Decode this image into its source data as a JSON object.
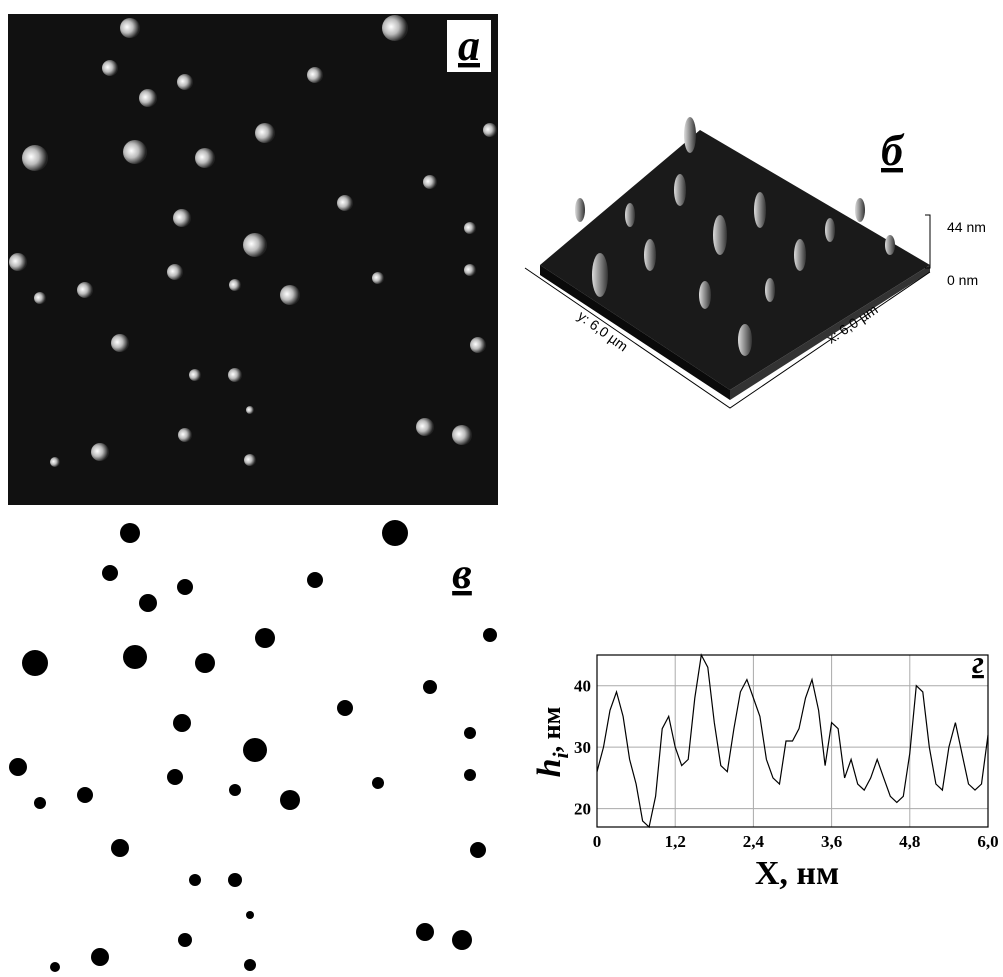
{
  "panel_labels": [
    "а",
    "б",
    "в",
    "г"
  ],
  "surface_3d": {
    "z_top": "44 nm",
    "z_bottom": "0 nm",
    "y_axis": "y: 6,0 µm",
    "x_axis": "x: 6,0 µm"
  },
  "chart_data": {
    "type": "line",
    "xlabel": "X, нм",
    "ylabel": {
      "symbol": "h",
      "subscript": "i",
      "unit": ", нм"
    },
    "x": [
      0,
      0.1,
      0.2,
      0.3,
      0.4,
      0.5,
      0.6,
      0.7,
      0.8,
      0.9,
      1.0,
      1.1,
      1.2,
      1.3,
      1.4,
      1.5,
      1.6,
      1.7,
      1.8,
      1.9,
      2.0,
      2.1,
      2.2,
      2.3,
      2.4,
      2.5,
      2.6,
      2.7,
      2.8,
      2.9,
      3.0,
      3.1,
      3.2,
      3.3,
      3.4,
      3.5,
      3.6,
      3.7,
      3.8,
      3.9,
      4.0,
      4.1,
      4.2,
      4.3,
      4.4,
      4.5,
      4.6,
      4.7,
      4.8,
      4.9,
      5.0,
      5.1,
      5.2,
      5.3,
      5.4,
      5.5,
      5.6,
      5.7,
      5.8,
      5.9,
      6.0
    ],
    "values": [
      26,
      30,
      36,
      39,
      35,
      28,
      24,
      18,
      17,
      22,
      33,
      35,
      30,
      27,
      28,
      38,
      45,
      43,
      34,
      27,
      26,
      33,
      39,
      41,
      38,
      35,
      28,
      25,
      24,
      31,
      31,
      33,
      38,
      41,
      36,
      27,
      34,
      33,
      25,
      28,
      24,
      23,
      25,
      28,
      25,
      22,
      21,
      22,
      29,
      40,
      39,
      30,
      24,
      23,
      30,
      34,
      29,
      24,
      23,
      24,
      32
    ],
    "color": "#000000",
    "xlim": [
      0,
      6.0
    ],
    "ylim": [
      17,
      45
    ],
    "xticks": [
      0,
      {
        "value": 1.2,
        "label": "1,2"
      },
      {
        "value": 2.4,
        "label": "2,4"
      },
      {
        "value": 3.6,
        "label": "3,6"
      },
      {
        "value": 4.8,
        "label": "4,8"
      },
      {
        "value": 6.0,
        "label": "6,0"
      }
    ],
    "yticks": [
      20,
      30,
      40
    ],
    "grid": true
  }
}
